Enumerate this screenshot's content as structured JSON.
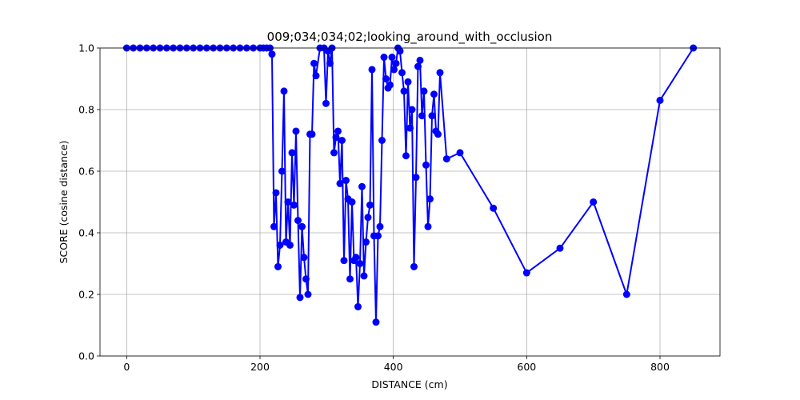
{
  "chart_data": {
    "type": "line",
    "title": "009;034;034;02;looking_around_with_occlusion",
    "xlabel": "DISTANCE (cm)",
    "ylabel": "SCORE (cosine distance)",
    "xlim": [
      -40,
      890
    ],
    "ylim": [
      0,
      1.0
    ],
    "xticks": [
      0,
      200,
      400,
      600,
      800
    ],
    "yticks": [
      0.0,
      0.2,
      0.4,
      0.6,
      0.8,
      1.0
    ],
    "xtick_labels": [
      "0",
      "200",
      "400",
      "600",
      "800"
    ],
    "ytick_labels": [
      "0.0",
      "0.2",
      "0.4",
      "0.6",
      "0.8",
      "1.0"
    ],
    "grid": true,
    "series_color": "#0000ff",
    "series": [
      {
        "x": [
          0,
          10,
          20,
          30,
          40,
          50,
          60,
          70,
          80,
          90,
          100,
          110,
          120,
          130,
          140,
          150,
          160,
          170,
          180,
          190,
          200,
          205,
          210,
          215,
          218,
          221,
          224,
          227,
          230,
          233,
          236,
          239,
          242,
          245,
          248,
          251,
          254,
          257,
          260,
          263,
          266,
          269,
          272,
          275,
          278,
          281,
          284,
          290,
          296,
          299,
          302,
          305,
          308,
          311,
          314,
          317,
          320,
          323,
          326,
          329,
          332,
          335,
          338,
          341,
          344,
          347,
          350,
          353,
          356,
          359,
          362,
          365,
          368,
          371,
          374,
          377,
          380,
          383,
          386,
          389,
          392,
          395,
          398,
          401,
          404,
          407,
          410,
          413,
          416,
          419,
          422,
          425,
          428,
          431,
          434,
          437,
          440,
          443,
          446,
          449,
          452,
          455,
          458,
          461,
          464,
          467,
          470,
          480,
          500,
          550,
          600,
          650,
          700,
          750,
          800,
          850
        ],
        "y": [
          1.0,
          1.0,
          1.0,
          1.0,
          1.0,
          1.0,
          1.0,
          1.0,
          1.0,
          1.0,
          1.0,
          1.0,
          1.0,
          1.0,
          1.0,
          1.0,
          1.0,
          1.0,
          1.0,
          1.0,
          1.0,
          1.0,
          1.0,
          1.0,
          0.98,
          0.42,
          0.53,
          0.29,
          0.36,
          0.6,
          0.86,
          0.37,
          0.5,
          0.36,
          0.66,
          0.49,
          0.73,
          0.44,
          0.19,
          0.42,
          0.32,
          0.25,
          0.2,
          0.72,
          0.72,
          0.95,
          0.91,
          1.0,
          1.0,
          0.82,
          0.99,
          0.95,
          1.0,
          0.66,
          0.71,
          0.73,
          0.56,
          0.7,
          0.31,
          0.57,
          0.51,
          0.25,
          0.5,
          0.31,
          0.32,
          0.16,
          0.3,
          0.55,
          0.26,
          0.37,
          0.45,
          0.49,
          0.93,
          0.39,
          0.11,
          0.39,
          0.42,
          0.7,
          0.97,
          0.9,
          0.87,
          0.88,
          0.97,
          0.93,
          0.95,
          1.0,
          0.99,
          0.92,
          0.86,
          0.65,
          0.89,
          0.74,
          0.8,
          0.29,
          0.58,
          0.94,
          0.96,
          0.78,
          0.86,
          0.62,
          0.42,
          0.51,
          0.78,
          0.85,
          0.73,
          0.72,
          0.92,
          0.64,
          0.66,
          0.48,
          0.27,
          0.35,
          0.5,
          0.2,
          0.83,
          1.0
        ]
      }
    ]
  }
}
